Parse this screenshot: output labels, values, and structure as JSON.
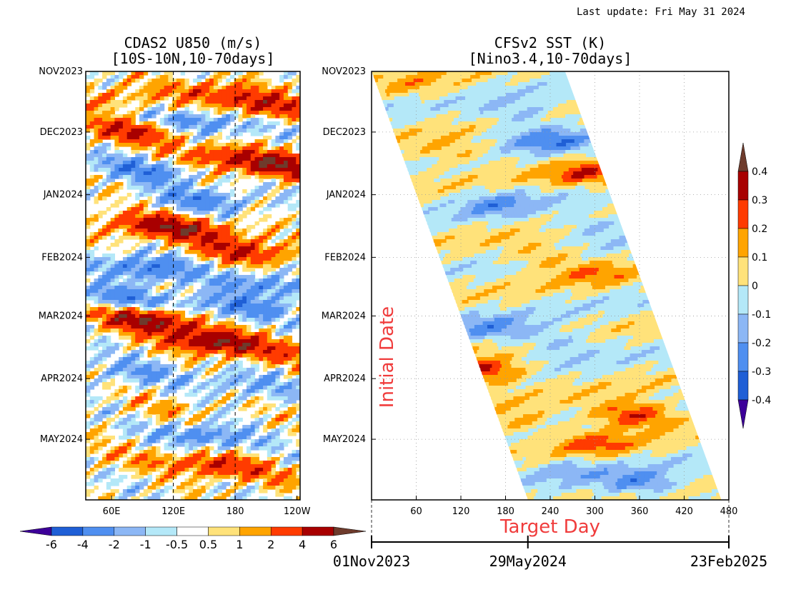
{
  "last_update": "Last update: Fri May 31 2024",
  "chart_data": [
    {
      "type": "heatmap",
      "title": "CDAS2 U850 (m/s)",
      "subtitle": "[10S-10N,10-70days]",
      "x_ticks": [
        "60E",
        "120E",
        "180",
        "120W"
      ],
      "x_tick_lon": [
        60,
        120,
        180,
        240
      ],
      "x_range": [
        35,
        243
      ],
      "y_ticks": [
        "NOV2023",
        "DEC2023",
        "JAN2024",
        "FEB2024",
        "MAR2024",
        "APR2024",
        "MAY2024"
      ],
      "y_range": [
        "2023-11-01",
        "2024-05-31"
      ],
      "dashed_lines_lon": [
        120,
        180
      ],
      "colorbar": {
        "labels": [
          "-6",
          "-4",
          "-2",
          "-1",
          "-0.5",
          "0.5",
          "1",
          "2",
          "4",
          "6"
        ],
        "colors": [
          "#3d0099",
          "#1f5fd6",
          "#4f8ff0",
          "#8cb7f5",
          "#b4e8f8",
          "#ffffff",
          "#ffe27a",
          "#ffa400",
          "#ff3b00",
          "#a80000",
          "#6e3b2c"
        ]
      },
      "events": [
        {
          "t": 0.06,
          "lon": 55,
          "v": 2
        },
        {
          "t": 0.05,
          "lon": 160,
          "v": 3
        },
        {
          "t": 0.08,
          "lon": 215,
          "v": 4
        },
        {
          "t": 0.14,
          "lon": 80,
          "v": 4
        },
        {
          "t": 0.12,
          "lon": 150,
          "v": -3
        },
        {
          "t": 0.2,
          "lon": 170,
          "v": 3
        },
        {
          "t": 0.22,
          "lon": 225,
          "v": 5
        },
        {
          "t": 0.23,
          "lon": 90,
          "v": -3
        },
        {
          "t": 0.3,
          "lon": 150,
          "v": -3
        },
        {
          "t": 0.36,
          "lon": 95,
          "v": 4
        },
        {
          "t": 0.37,
          "lon": 145,
          "v": 3
        },
        {
          "t": 0.42,
          "lon": 190,
          "v": 4
        },
        {
          "t": 0.46,
          "lon": 95,
          "v": -4
        },
        {
          "t": 0.5,
          "lon": 215,
          "v": -3
        },
        {
          "t": 0.53,
          "lon": 70,
          "v": -3
        },
        {
          "t": 0.55,
          "lon": 180,
          "v": -3
        },
        {
          "t": 0.58,
          "lon": 95,
          "v": 6
        },
        {
          "t": 0.63,
          "lon": 160,
          "v": 6
        },
        {
          "t": 0.66,
          "lon": 225,
          "v": 2
        },
        {
          "t": 0.7,
          "lon": 80,
          "v": -2
        },
        {
          "t": 0.73,
          "lon": 190,
          "v": -2
        },
        {
          "t": 0.79,
          "lon": 120,
          "v": 1
        },
        {
          "t": 0.85,
          "lon": 150,
          "v": -3
        },
        {
          "t": 0.9,
          "lon": 60,
          "v": 1
        },
        {
          "t": 0.92,
          "lon": 160,
          "v": 4
        },
        {
          "t": 0.95,
          "lon": 230,
          "v": 1
        }
      ]
    },
    {
      "type": "heatmap",
      "title": "CFSv2 SST (K)",
      "subtitle": "[Nino3.4,10-70days]",
      "xlabel": "Target Day",
      "ylabel": "Initial Date",
      "x_ticks": [
        "60",
        "120",
        "180",
        "240",
        "300",
        "360",
        "420",
        "480"
      ],
      "x_tick_values": [
        60,
        120,
        180,
        240,
        300,
        360,
        420,
        480
      ],
      "x_range": [
        0,
        480
      ],
      "y_ticks": [
        "NOV2023",
        "DEC2023",
        "JAN2024",
        "FEB2024",
        "MAR2024",
        "APR2024",
        "MAY2024"
      ],
      "y_range": [
        "2023-11-01",
        "2024-05-31"
      ],
      "forecast_lead_days": [
        0,
        260
      ],
      "date_axis": {
        "labels": [
          "01Nov2023",
          "29May2024",
          "23Feb2025"
        ],
        "values": [
          0,
          210,
          480
        ]
      },
      "grid": true,
      "colorbar": {
        "labels": [
          "0.4",
          "0.3",
          "0.2",
          "0.1",
          "0",
          "-0.1",
          "-0.2",
          "-0.3",
          "-0.4"
        ],
        "colors": [
          "#6e3b2c",
          "#a80000",
          "#ff3b00",
          "#ffa400",
          "#ffe27a",
          "#b4e8f8",
          "#8cb7f5",
          "#4f8ff0",
          "#1f5fd6",
          "#3d0099"
        ]
      },
      "events": [
        {
          "day": 60,
          "t": 0.03,
          "v": 0.1
        },
        {
          "day": 200,
          "t": 0.1,
          "v": -0.15
        },
        {
          "day": 240,
          "t": 0.16,
          "v": -0.25
        },
        {
          "day": 110,
          "t": 0.19,
          "v": 0.15
        },
        {
          "day": 290,
          "t": 0.24,
          "v": 0.25
        },
        {
          "day": 170,
          "t": 0.31,
          "v": -0.2
        },
        {
          "day": 300,
          "t": 0.36,
          "v": -0.15
        },
        {
          "day": 230,
          "t": 0.43,
          "v": 0.15
        },
        {
          "day": 300,
          "t": 0.47,
          "v": 0.15
        },
        {
          "day": 160,
          "t": 0.6,
          "v": -0.2
        },
        {
          "day": 250,
          "t": 0.63,
          "v": -0.15
        },
        {
          "day": 152,
          "t": 0.7,
          "v": 0.35
        },
        {
          "day": 350,
          "t": 0.8,
          "v": 0.35
        },
        {
          "day": 200,
          "t": 0.82,
          "v": 0.15
        },
        {
          "day": 300,
          "t": 0.87,
          "v": 0.2
        },
        {
          "day": 360,
          "t": 0.96,
          "v": -0.25
        },
        {
          "day": 260,
          "t": 0.93,
          "v": -0.12
        }
      ]
    }
  ]
}
